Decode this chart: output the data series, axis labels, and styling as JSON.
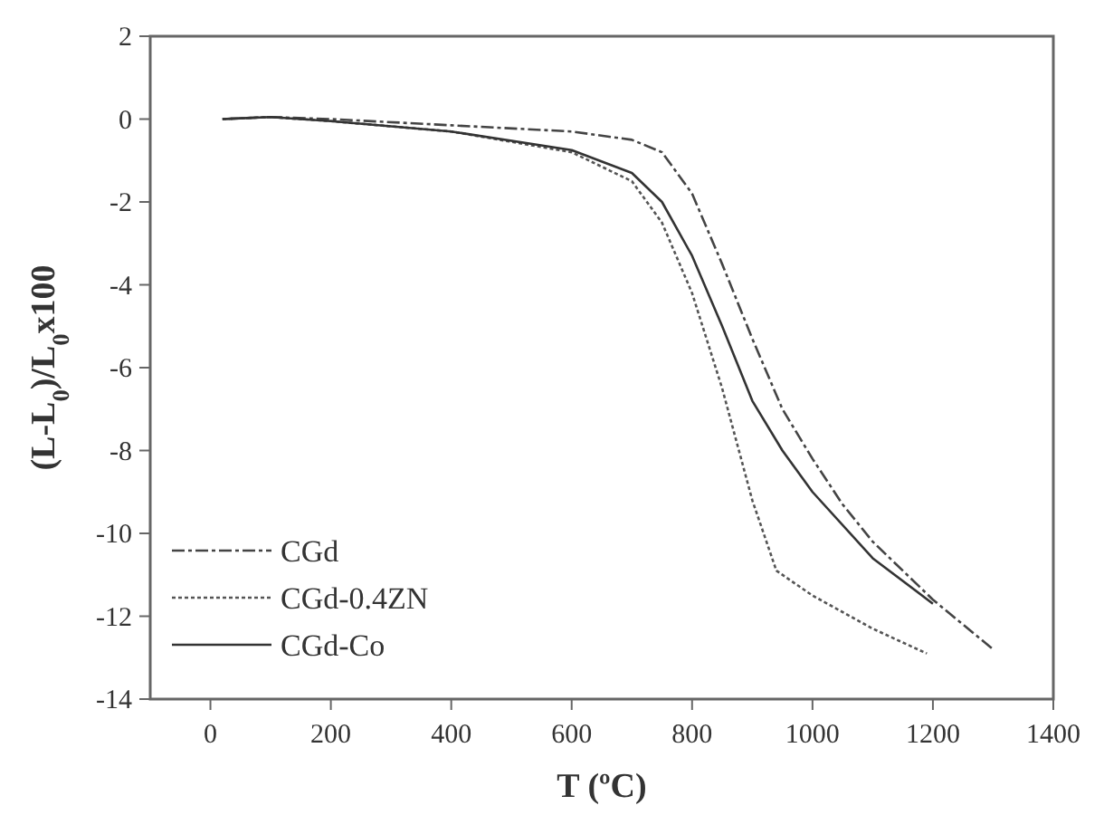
{
  "chart_data": {
    "type": "line",
    "xlabel": "T (ºC)",
    "ylabel": "(L-L$_{0}$)/L$_{0}$x100",
    "xlim": [
      -100,
      1400
    ],
    "xticks": [
      0,
      200,
      400,
      600,
      800,
      1000,
      1200,
      1400
    ],
    "ylim": [
      -14,
      2
    ],
    "yticks": [
      -14,
      -12,
      -10,
      -8,
      -6,
      -4,
      -2,
      0,
      2
    ],
    "legend": "bottom left",
    "grid": false,
    "series": [
      {
        "name": "CGd",
        "color": "#444444",
        "line_style": "dashed",
        "x": [
          20,
          100,
          200,
          400,
          600,
          700,
          750,
          800,
          850,
          900,
          950,
          1000,
          1050,
          1100,
          1200,
          1300
        ],
        "values": [
          0,
          0.05,
          0,
          -0.15,
          -0.3,
          -0.5,
          -0.8,
          -1.8,
          -3.5,
          -5.3,
          -7,
          -8.2,
          -9.3,
          -10.2,
          -11.6,
          -12.8
        ]
      },
      {
        "name": "CGd-0.4ZN",
        "color": "#555555",
        "line_style": "dotted",
        "x": [
          20,
          100,
          200,
          400,
          600,
          700,
          750,
          800,
          850,
          900,
          940,
          1000,
          1100,
          1190
        ],
        "values": [
          0,
          0.05,
          -0.05,
          -0.3,
          -0.8,
          -1.5,
          -2.5,
          -4.2,
          -6.5,
          -9.2,
          -10.9,
          -11.5,
          -12.3,
          -12.9
        ]
      },
      {
        "name": "CGd-Co",
        "color": "#333333",
        "line_style": "solid",
        "x": [
          20,
          100,
          200,
          400,
          600,
          700,
          750,
          800,
          850,
          900,
          950,
          1000,
          1100,
          1200
        ],
        "values": [
          0,
          0.05,
          -0.05,
          -0.3,
          -0.75,
          -1.3,
          -2,
          -3.3,
          -5,
          -6.8,
          -8,
          -9,
          -10.6,
          -11.7
        ]
      }
    ]
  }
}
